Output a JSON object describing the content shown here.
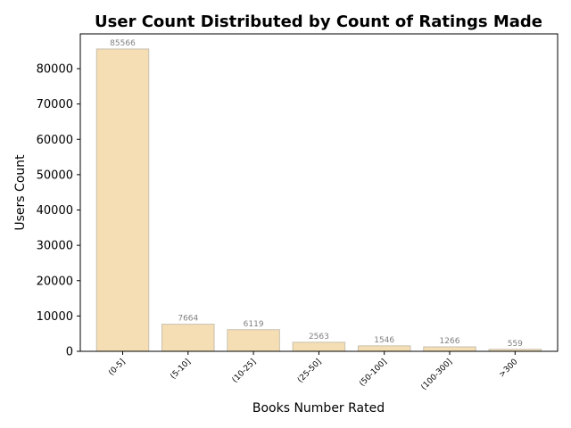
{
  "chart_data": {
    "type": "bar",
    "title": "User Count Distributed by Count of Ratings Made",
    "xlabel": "Books Number Rated",
    "ylabel": "Users Count",
    "categories": [
      "(0-5]",
      "(5-10]",
      "(10-25]",
      "(25-50]",
      "(50-100]",
      "(100-300]",
      ">300"
    ],
    "values": [
      85566,
      7664,
      6119,
      2563,
      1546,
      1266,
      559
    ],
    "data_labels": [
      "85566",
      "7664",
      "6119",
      "2563",
      "1546",
      "1266",
      "559"
    ],
    "yticks": [
      0,
      10000,
      20000,
      30000,
      40000,
      50000,
      60000,
      70000,
      80000
    ],
    "ylim": [
      0,
      89844
    ],
    "grid": false,
    "legend": "none",
    "bar_color": "#f5deb3",
    "bar_edge_color": "#c8c0b0",
    "data_label_color": "#808080"
  }
}
